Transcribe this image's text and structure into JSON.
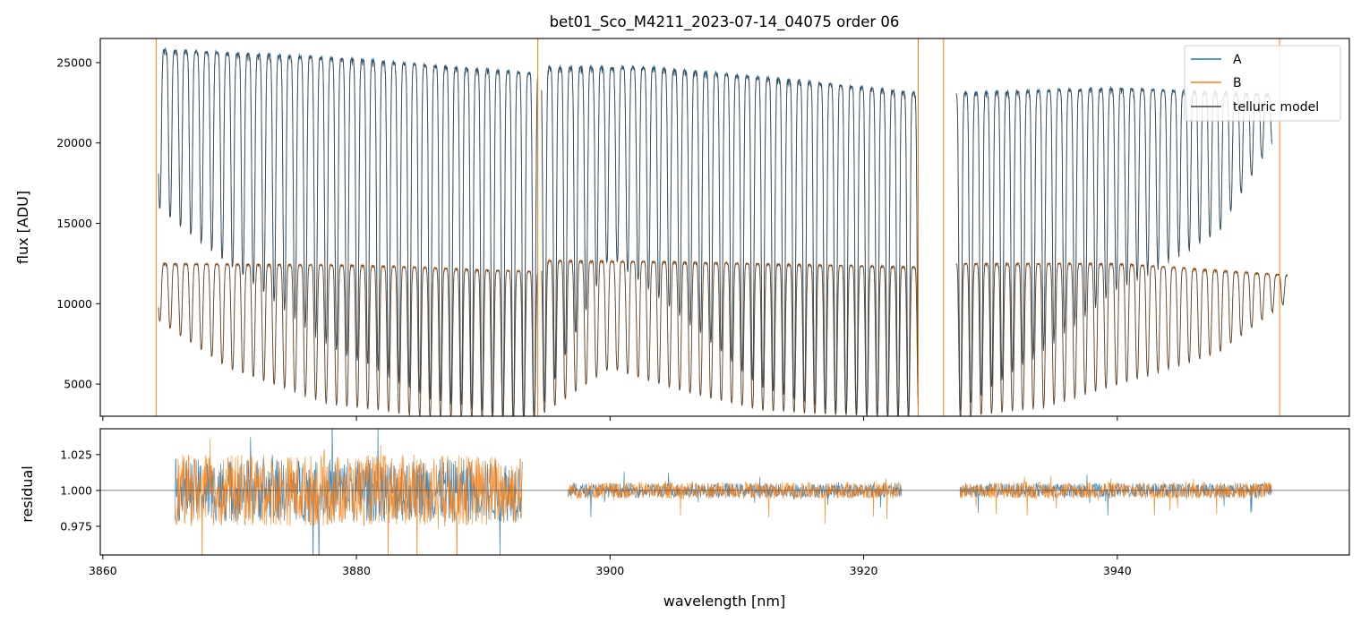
{
  "chart_data": [
    {
      "panel": "spectrum",
      "type": "line",
      "title": "bet01_Sco_M4211_2023-07-14_04075  order 06",
      "xlabel": "",
      "ylabel": "flux [ADU]",
      "xlim": [
        3859.8,
        3958.3
      ],
      "ylim": [
        3000,
        26500
      ],
      "yticks": [
        5000,
        10000,
        15000,
        20000,
        25000
      ],
      "ytick_labels": [
        "5000",
        "10000",
        "15000",
        "20000",
        "25000"
      ],
      "xticks": [
        3860,
        3880,
        3900,
        3920,
        3940
      ],
      "grid": false,
      "legend_position": "top-right",
      "legend": [
        {
          "label": "A",
          "color": "#1f77b4"
        },
        {
          "label": "B",
          "color": "#ff7f0e"
        },
        {
          "label": "telluric model",
          "color": "#404040"
        }
      ],
      "series": [
        {
          "name": "A",
          "color": "#1f77b4",
          "continuum": [
            [
              3864.4,
              25800
            ],
            [
              3880,
              25200
            ],
            [
              3894.3,
              24300
            ],
            [
              3894.6,
              24700
            ],
            [
              3903,
              24700
            ],
            [
              3913,
              24000
            ],
            [
              3924.3,
              23100
            ],
            [
              3927.3,
              23100
            ],
            [
              3940,
              23400
            ],
            [
              3952,
              23000
            ]
          ],
          "segments": [
            [
              3864.4,
              3894.3
            ],
            [
              3894.6,
              3924.3
            ],
            [
              3927.3,
              3952.2
            ]
          ],
          "line_spacing_nm": 0.82,
          "line_depth_min": [
            [
              3864.4,
              16000
            ],
            [
              3870,
              12500
            ],
            [
              3878,
              7500
            ],
            [
              3886,
              4300
            ],
            [
              3894,
              2500
            ],
            [
              3900,
              13000
            ],
            [
              3906,
              9000
            ],
            [
              3912,
              4800
            ],
            [
              3918,
              3200
            ],
            [
              3924,
              2800
            ],
            [
              3927.5,
              3300
            ],
            [
              3932,
              6000
            ],
            [
              3940,
              11000
            ],
            [
              3948,
              14500
            ],
            [
              3952,
              20000
            ]
          ]
        },
        {
          "name": "B",
          "color": "#ff7f0e",
          "continuum": [
            [
              3864.4,
              12500
            ],
            [
              3880,
              12400
            ],
            [
              3894.3,
              12000
            ],
            [
              3894.6,
              12700
            ],
            [
              3905,
              12600
            ],
            [
              3924.3,
              12300
            ],
            [
              3927.3,
              12500
            ],
            [
              3940,
              12500
            ],
            [
              3953,
              11800
            ]
          ],
          "segments": [
            [
              3864.4,
              3894.3
            ],
            [
              3894.6,
              3924.3
            ],
            [
              3927.3,
              3953.4
            ]
          ],
          "line_spacing_nm": 0.82,
          "line_depth_min": [
            [
              3864.4,
              9000
            ],
            [
              3870,
              6000
            ],
            [
              3878,
              3800
            ],
            [
              3886,
              3000
            ],
            [
              3894,
              2800
            ],
            [
              3900,
              6000
            ],
            [
              3906,
              4500
            ],
            [
              3912,
              3400
            ],
            [
              3918,
              3100
            ],
            [
              3924,
              3000
            ],
            [
              3928,
              3000
            ],
            [
              3934,
              3600
            ],
            [
              3940,
              5000
            ],
            [
              3948,
              7000
            ],
            [
              3953,
              10000
            ]
          ]
        },
        {
          "name": "telluric model",
          "color": "#404040",
          "follows": [
            "A",
            "B"
          ]
        }
      ],
      "spikes": [
        {
          "series": "B",
          "x": 3864.2
        },
        {
          "series": "B",
          "x": 3894.3
        },
        {
          "series": "A",
          "x": 3924.3
        },
        {
          "series": "B",
          "x": 3924.3
        },
        {
          "series": "B",
          "x": 3926.3
        },
        {
          "series": "B",
          "x": 3952.8
        }
      ]
    },
    {
      "panel": "residual",
      "type": "line",
      "xlabel": "wavelength [nm]",
      "ylabel": "residual",
      "xlim": [
        3859.8,
        3958.3
      ],
      "ylim": [
        0.955,
        1.043
      ],
      "yticks": [
        0.975,
        1.0,
        1.025
      ],
      "ytick_labels": [
        "0.975",
        "1.000",
        "1.025"
      ],
      "xticks": [
        3860,
        3880,
        3900,
        3920,
        3940
      ],
      "xtick_labels": [
        "3860",
        "3880",
        "3900",
        "3920",
        "3940"
      ],
      "reference_line": 1.0,
      "series": [
        {
          "name": "A",
          "color": "#1f77b4",
          "segments": [
            [
              3865.7,
              3893.1
            ],
            [
              3896.7,
              3923.0
            ],
            [
              3927.6,
              3952.2
            ]
          ],
          "noise_amplitude": [
            0.022,
            0.005,
            0.005
          ]
        },
        {
          "name": "B",
          "color": "#ff7f0e",
          "segments": [
            [
              3865.7,
              3893.1
            ],
            [
              3896.7,
              3923.0
            ],
            [
              3927.6,
              3952.2
            ]
          ],
          "noise_amplitude": [
            0.025,
            0.006,
            0.006
          ]
        }
      ]
    }
  ]
}
